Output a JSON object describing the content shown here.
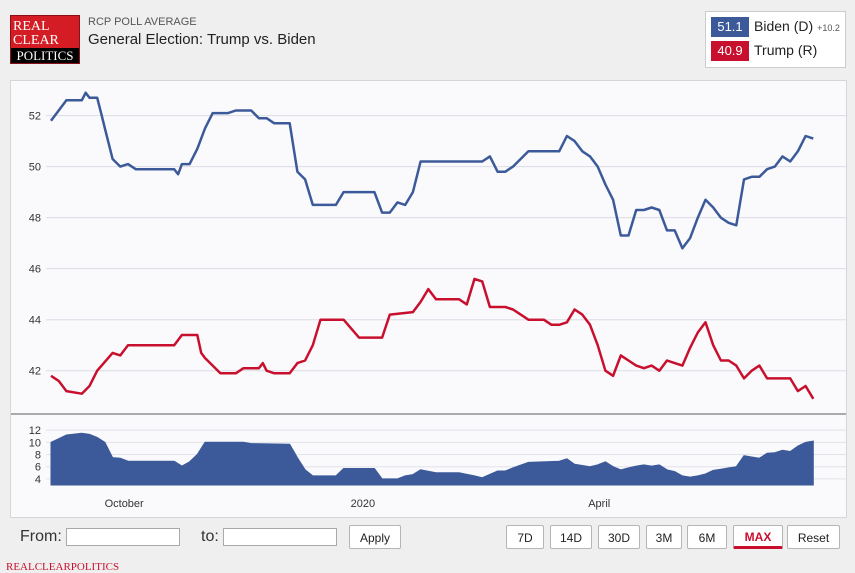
{
  "header": {
    "logo": {
      "line1": "REAL",
      "line2": "CLEAR",
      "line3": "POLITICS"
    },
    "kicker": "RCP POLL AVERAGE",
    "title": "General Election: Trump vs. Biden"
  },
  "legend": {
    "biden": {
      "value": "51.1",
      "label": "Biden (D)",
      "spread": "+10.2",
      "color": "#3c5a9a"
    },
    "trump": {
      "value": "40.9",
      "label": "Trump (R)",
      "color": "#c8102e"
    }
  },
  "chart_data": {
    "type": "line",
    "title": "General Election: Trump vs. Biden",
    "main_y_range": [
      40.5,
      53.2
    ],
    "main_y_ticks": [
      "42",
      "44",
      "46",
      "48",
      "50",
      "52"
    ],
    "spread_y_ticks": [
      "4",
      "6",
      "8",
      "10",
      "12"
    ],
    "x_ticks": [
      "October",
      "2020",
      "April"
    ],
    "x_range": [
      0,
      100
    ],
    "grid": true,
    "series": [
      {
        "name": "Biden (D)",
        "color": "#3c5a9a",
        "points": [
          [
            0,
            51.8
          ],
          [
            1,
            52.2
          ],
          [
            2,
            52.6
          ],
          [
            4,
            52.6
          ],
          [
            4.5,
            52.9
          ],
          [
            5,
            52.7
          ],
          [
            6,
            52.7
          ],
          [
            6.5,
            52.1
          ],
          [
            7,
            51.5
          ],
          [
            8,
            50.3
          ],
          [
            9,
            50.0
          ],
          [
            10,
            50.1
          ],
          [
            11,
            49.9
          ],
          [
            16,
            49.9
          ],
          [
            16.5,
            49.7
          ],
          [
            17,
            50.1
          ],
          [
            18,
            50.1
          ],
          [
            19,
            50.7
          ],
          [
            20,
            51.5
          ],
          [
            21,
            52.1
          ],
          [
            23,
            52.1
          ],
          [
            24,
            52.2
          ],
          [
            26,
            52.2
          ],
          [
            27,
            51.9
          ],
          [
            28,
            51.9
          ],
          [
            29,
            51.7
          ],
          [
            31,
            51.7
          ],
          [
            32,
            49.8
          ],
          [
            33,
            49.5
          ],
          [
            34,
            48.5
          ],
          [
            35,
            48.5
          ],
          [
            37,
            48.5
          ],
          [
            38,
            49.0
          ],
          [
            42,
            49.0
          ],
          [
            43,
            48.2
          ],
          [
            44,
            48.2
          ],
          [
            45,
            48.6
          ],
          [
            46,
            48.5
          ],
          [
            47,
            49.0
          ],
          [
            48,
            50.2
          ],
          [
            56,
            50.2
          ],
          [
            57,
            50.4
          ],
          [
            58,
            49.8
          ],
          [
            59,
            49.8
          ],
          [
            60,
            50.0
          ],
          [
            62,
            50.6
          ],
          [
            66,
            50.6
          ],
          [
            67,
            51.2
          ],
          [
            68,
            51.0
          ],
          [
            69,
            50.6
          ],
          [
            70,
            50.4
          ],
          [
            71,
            50.0
          ],
          [
            72,
            49.3
          ],
          [
            73,
            48.7
          ],
          [
            74,
            47.3
          ],
          [
            75,
            47.3
          ],
          [
            76,
            48.3
          ],
          [
            77,
            48.3
          ],
          [
            78,
            48.4
          ],
          [
            79,
            48.3
          ],
          [
            80,
            47.5
          ],
          [
            81,
            47.5
          ],
          [
            82,
            46.8
          ],
          [
            83,
            47.2
          ],
          [
            84,
            48.0
          ],
          [
            85,
            48.7
          ],
          [
            86,
            48.4
          ],
          [
            87,
            48.0
          ],
          [
            88,
            47.8
          ],
          [
            89,
            47.7
          ],
          [
            90,
            49.5
          ],
          [
            91,
            49.6
          ],
          [
            92,
            49.6
          ],
          [
            93,
            49.9
          ],
          [
            94,
            50.0
          ],
          [
            95,
            50.4
          ],
          [
            96,
            50.2
          ],
          [
            97,
            50.6
          ],
          [
            98,
            51.2
          ],
          [
            99,
            51.1
          ]
        ]
      },
      {
        "name": "Trump (R)",
        "color": "#c8102e",
        "points": [
          [
            0,
            41.8
          ],
          [
            1,
            41.6
          ],
          [
            2,
            41.2
          ],
          [
            4,
            41.1
          ],
          [
            5,
            41.4
          ],
          [
            6,
            42.0
          ],
          [
            8,
            42.7
          ],
          [
            9,
            42.6
          ],
          [
            10,
            43.0
          ],
          [
            16,
            43.0
          ],
          [
            17,
            43.4
          ],
          [
            19,
            43.4
          ],
          [
            19.5,
            42.7
          ],
          [
            20,
            42.5
          ],
          [
            21,
            42.2
          ],
          [
            22,
            41.9
          ],
          [
            24,
            41.9
          ],
          [
            25,
            42.1
          ],
          [
            27,
            42.1
          ],
          [
            27.5,
            42.3
          ],
          [
            28,
            42.0
          ],
          [
            29,
            41.9
          ],
          [
            31,
            41.9
          ],
          [
            32,
            42.3
          ],
          [
            33,
            42.4
          ],
          [
            34,
            43.0
          ],
          [
            35,
            44.0
          ],
          [
            38,
            44.0
          ],
          [
            40,
            43.3
          ],
          [
            43,
            43.3
          ],
          [
            44,
            44.2
          ],
          [
            47,
            44.3
          ],
          [
            48,
            44.7
          ],
          [
            49,
            45.2
          ],
          [
            50,
            44.8
          ],
          [
            53,
            44.8
          ],
          [
            54,
            44.6
          ],
          [
            55,
            45.6
          ],
          [
            56,
            45.5
          ],
          [
            57,
            44.5
          ],
          [
            59,
            44.5
          ],
          [
            60,
            44.4
          ],
          [
            61,
            44.2
          ],
          [
            62,
            44.0
          ],
          [
            64,
            44.0
          ],
          [
            65,
            43.8
          ],
          [
            66,
            43.8
          ],
          [
            67,
            43.9
          ],
          [
            68,
            44.4
          ],
          [
            69,
            44.2
          ],
          [
            70,
            43.8
          ],
          [
            71,
            43.0
          ],
          [
            72,
            42.0
          ],
          [
            73,
            41.8
          ],
          [
            74,
            42.6
          ],
          [
            75,
            42.4
          ],
          [
            76,
            42.2
          ],
          [
            77,
            42.1
          ],
          [
            78,
            42.2
          ],
          [
            79,
            42.0
          ],
          [
            80,
            42.4
          ],
          [
            81,
            42.3
          ],
          [
            82,
            42.2
          ],
          [
            83,
            42.9
          ],
          [
            84,
            43.5
          ],
          [
            85,
            43.9
          ],
          [
            86,
            43.0
          ],
          [
            87,
            42.4
          ],
          [
            88,
            42.4
          ],
          [
            89,
            42.2
          ],
          [
            90,
            41.7
          ],
          [
            91,
            42.0
          ],
          [
            92,
            42.2
          ],
          [
            93,
            41.7
          ],
          [
            96,
            41.7
          ],
          [
            97,
            41.2
          ],
          [
            98,
            41.4
          ],
          [
            99,
            40.9
          ]
        ]
      },
      {
        "name": "Spread",
        "color": "#3c5a9a",
        "points": [
          [
            0,
            10.0
          ],
          [
            1,
            10.6
          ],
          [
            2,
            11.2
          ],
          [
            4,
            11.5
          ],
          [
            5,
            11.3
          ],
          [
            6,
            10.8
          ],
          [
            7,
            10.0
          ],
          [
            8,
            7.5
          ],
          [
            9,
            7.4
          ],
          [
            10,
            6.9
          ],
          [
            16,
            6.9
          ],
          [
            17,
            6.1
          ],
          [
            18,
            6.8
          ],
          [
            19,
            8.0
          ],
          [
            20,
            10.0
          ],
          [
            25,
            10.0
          ],
          [
            26,
            9.8
          ],
          [
            31,
            9.7
          ],
          [
            32,
            7.5
          ],
          [
            33,
            5.5
          ],
          [
            34,
            4.5
          ],
          [
            37,
            4.5
          ],
          [
            38,
            5.7
          ],
          [
            42,
            5.7
          ],
          [
            43,
            4.0
          ],
          [
            45,
            4.0
          ],
          [
            46,
            4.5
          ],
          [
            47,
            4.7
          ],
          [
            48,
            5.5
          ],
          [
            50,
            5.0
          ],
          [
            53,
            5.0
          ],
          [
            55,
            4.5
          ],
          [
            56,
            4.2
          ],
          [
            58,
            5.3
          ],
          [
            59,
            5.3
          ],
          [
            60,
            5.8
          ],
          [
            62,
            6.7
          ],
          [
            66,
            6.9
          ],
          [
            67,
            7.3
          ],
          [
            68,
            6.4
          ],
          [
            69,
            6.2
          ],
          [
            70,
            6.0
          ],
          [
            71,
            6.3
          ],
          [
            72,
            6.8
          ],
          [
            73,
            6.0
          ],
          [
            74,
            5.5
          ],
          [
            75,
            5.8
          ],
          [
            76,
            6.1
          ],
          [
            77,
            6.3
          ],
          [
            78,
            6.1
          ],
          [
            79,
            6.3
          ],
          [
            80,
            5.5
          ],
          [
            81,
            5.2
          ],
          [
            82,
            4.5
          ],
          [
            83,
            4.3
          ],
          [
            84,
            4.5
          ],
          [
            85,
            4.8
          ],
          [
            86,
            5.4
          ],
          [
            87,
            5.6
          ],
          [
            88,
            5.8
          ],
          [
            89,
            6.0
          ],
          [
            90,
            7.8
          ],
          [
            91,
            7.6
          ],
          [
            92,
            7.4
          ],
          [
            93,
            8.2
          ],
          [
            94,
            8.3
          ],
          [
            95,
            8.7
          ],
          [
            96,
            8.5
          ],
          [
            97,
            9.4
          ],
          [
            98,
            10.0
          ],
          [
            99,
            10.2
          ]
        ]
      }
    ]
  },
  "toolbar": {
    "from_label": "From:",
    "to_label": "to:",
    "from_value": "",
    "to_value": "",
    "apply": "Apply",
    "ranges": [
      "7D",
      "14D",
      "30D",
      "3M",
      "6M",
      "MAX",
      "Reset"
    ],
    "active_range": "MAX"
  },
  "footer": "REALCLEARPOLITICS"
}
